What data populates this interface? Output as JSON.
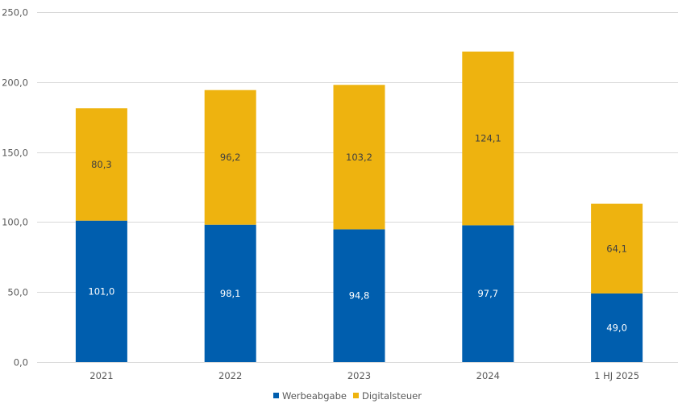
{
  "chart_data": {
    "type": "bar",
    "stacked": true,
    "title": "",
    "xlabel": "",
    "ylabel": "",
    "categories": [
      "2021",
      "2022",
      "2023",
      "2024",
      "1 HJ 2025"
    ],
    "series": [
      {
        "name": "Werbeabgabe",
        "color": "#005EAE",
        "label_color": "#FFFFFF",
        "values": [
          101.0,
          98.1,
          94.8,
          97.7,
          49.0
        ],
        "labels": [
          "101,0",
          "98,1",
          "94,8",
          "97,7",
          "49,0"
        ]
      },
      {
        "name": "Digitalsteuer",
        "color": "#EEB30F",
        "label_color": "#404040",
        "values": [
          80.3,
          96.2,
          103.2,
          124.1,
          64.1
        ],
        "labels": [
          "80,3",
          "96,2",
          "103,2",
          "124,1",
          "64,1"
        ]
      }
    ],
    "ylim": [
      0,
      250
    ],
    "yticks": [
      0,
      50,
      100,
      150,
      200,
      250
    ],
    "ytick_labels": [
      "0,0",
      "50,0",
      "100,0",
      "150,0",
      "200,0",
      "250,0"
    ],
    "grid": true,
    "gridline_color": "#D9D9D9",
    "legend": {
      "position": "bottom",
      "entries": [
        "Werbeabgabe",
        "Digitalsteuer"
      ]
    }
  }
}
